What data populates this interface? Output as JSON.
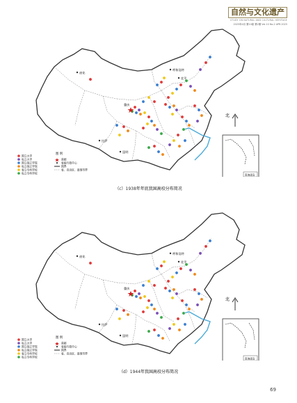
{
  "masthead": {
    "title": "自然与文化遗产",
    "subtitle": "STUDY ON NATURAL AND CULTURAL HERITAGE",
    "issue": "2025年4月 第10卷 第2期 Vol.10 No.2 APR.2025"
  },
  "legend": {
    "title": "图 例",
    "university_types": [
      {
        "label": "国立大学",
        "color": "#e03a3a"
      },
      {
        "label": "私立大学",
        "color": "#7a4fb5"
      },
      {
        "label": "国立独立学院",
        "color": "#3a7fd0"
      },
      {
        "label": "私立独立学院",
        "color": "#f08a1a"
      },
      {
        "label": "省立专科学校",
        "color": "#f0c81a"
      },
      {
        "label": "私立专科学校",
        "color": "#3aaa4a"
      }
    ],
    "symbols": [
      {
        "label": "首都",
        "icon": "star-icon"
      },
      {
        "label": "省级行政中心",
        "icon": "dot-icon"
      },
      {
        "label": "国界",
        "icon": "national-border-icon"
      },
      {
        "label": "省、自治区、直辖市界",
        "icon": "provincial-border-icon"
      }
    ]
  },
  "maps": [
    {
      "id": "c",
      "caption": "（c）1938年年底我国高校分布简况",
      "capital_label": "重庆",
      "place_labels": [
        "迪化",
        "呼和浩特",
        "北平",
        "拉萨",
        "昆明"
      ]
    },
    {
      "id": "d",
      "caption": "（d）1944年我国高校分布简况",
      "capital_label": "重庆",
      "place_labels": [
        "迪化",
        "呼和浩特",
        "北平",
        "拉萨",
        "昆明"
      ]
    }
  ],
  "compass_label": "北",
  "inset_label": "南海诸岛",
  "page_number": "69"
}
